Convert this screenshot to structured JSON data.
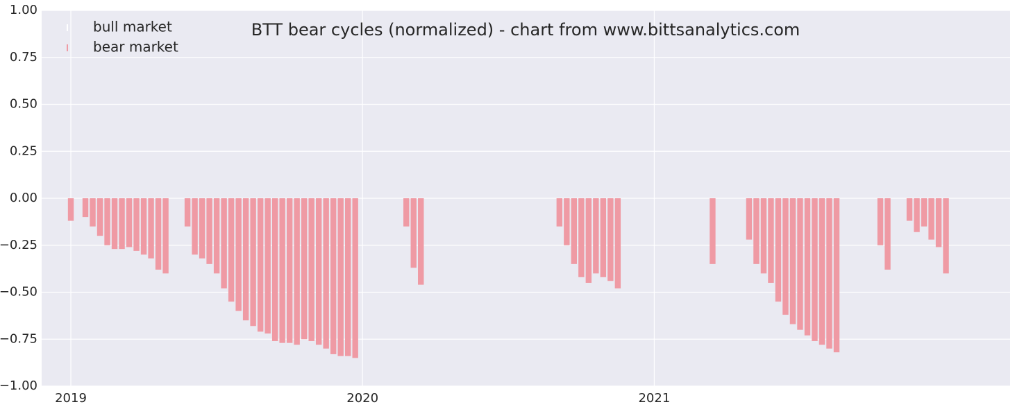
{
  "chart_data": {
    "type": "bar",
    "title": "BTT bear cycles (normalized)  - chart from www.bittsanalytics.com",
    "x": [
      2019,
      2019.025,
      2019.05,
      2019.075,
      2019.1,
      2019.125,
      2019.15,
      2019.175,
      2019.2,
      2019.225,
      2019.25,
      2019.275,
      2019.3,
      2019.325,
      2019.35,
      2019.375,
      2019.4,
      2019.425,
      2019.45,
      2019.475,
      2019.5,
      2019.525,
      2019.55,
      2019.575,
      2019.6,
      2019.625,
      2019.65,
      2019.675,
      2019.7,
      2019.725,
      2019.75,
      2019.775,
      2019.8,
      2019.825,
      2019.85,
      2019.875,
      2019.9,
      2019.925,
      2019.95,
      2019.975,
      2020,
      2020.025,
      2020.05,
      2020.075,
      2020.1,
      2020.125,
      2020.15,
      2020.175,
      2020.2,
      2020.225,
      2020.25,
      2020.275,
      2020.3,
      2020.325,
      2020.35,
      2020.375,
      2020.4,
      2020.425,
      2020.45,
      2020.475,
      2020.5,
      2020.525,
      2020.55,
      2020.575,
      2020.6,
      2020.625,
      2020.65,
      2020.675,
      2020.7,
      2020.725,
      2020.75,
      2020.775,
      2020.8,
      2020.825,
      2020.85,
      2020.875,
      2020.9,
      2020.925,
      2020.95,
      2020.975,
      2021,
      2021.025,
      2021.05,
      2021.075,
      2021.1,
      2021.125,
      2021.15,
      2021.175,
      2021.2,
      2021.225,
      2021.25,
      2021.275,
      2021.3,
      2021.325,
      2021.35,
      2021.375,
      2021.4,
      2021.425,
      2021.45,
      2021.475,
      2021.5,
      2021.525,
      2021.55,
      2021.575,
      2021.6,
      2021.625,
      2021.65,
      2021.675,
      2021.7,
      2021.725,
      2021.75,
      2021.775,
      2021.8,
      2021.825,
      2021.85,
      2021.875,
      2021.9,
      2021.925,
      2021.95,
      2021.975,
      2022
    ],
    "series": [
      {
        "name": "bull market",
        "color": "#ffffff",
        "values": [
          null,
          0,
          null,
          null,
          null,
          null,
          null,
          null,
          null,
          null,
          null,
          null,
          null,
          null,
          0,
          0,
          null,
          null,
          null,
          null,
          null,
          null,
          null,
          null,
          null,
          null,
          null,
          null,
          null,
          null,
          null,
          null,
          null,
          null,
          null,
          null,
          null,
          null,
          null,
          null,
          0,
          0,
          0,
          0,
          0,
          0,
          null,
          null,
          null,
          0,
          0,
          0,
          0,
          0,
          0,
          0,
          0,
          0,
          0,
          0,
          0,
          0,
          0,
          0,
          0,
          0,
          0,
          null,
          null,
          null,
          null,
          null,
          null,
          null,
          null,
          null,
          0,
          0,
          0,
          0,
          0,
          0,
          0,
          0,
          0,
          0,
          0,
          0,
          null,
          0,
          0,
          0,
          0,
          null,
          null,
          null,
          null,
          null,
          null,
          null,
          null,
          null,
          null,
          null,
          null,
          null,
          0,
          0,
          0,
          0,
          0,
          null,
          null,
          0,
          0,
          null,
          null,
          null,
          null,
          null,
          null
        ]
      },
      {
        "name": "bear market",
        "color": "#ef9aa4",
        "values": [
          -0.12,
          null,
          -0.1,
          -0.15,
          -0.2,
          -0.25,
          -0.27,
          -0.27,
          -0.26,
          -0.28,
          -0.3,
          -0.32,
          -0.38,
          -0.4,
          null,
          null,
          -0.15,
          -0.3,
          -0.32,
          -0.35,
          -0.4,
          -0.48,
          -0.55,
          -0.6,
          -0.65,
          -0.68,
          -0.71,
          -0.72,
          -0.76,
          -0.77,
          -0.77,
          -0.78,
          -0.75,
          -0.76,
          -0.78,
          -0.8,
          -0.83,
          -0.84,
          -0.84,
          -0.85,
          null,
          null,
          null,
          null,
          null,
          null,
          -0.15,
          -0.37,
          -0.46,
          null,
          null,
          null,
          null,
          null,
          null,
          null,
          null,
          null,
          null,
          null,
          null,
          null,
          null,
          null,
          null,
          null,
          null,
          -0.15,
          -0.25,
          -0.35,
          -0.42,
          -0.45,
          -0.4,
          -0.42,
          -0.44,
          -0.48,
          null,
          null,
          null,
          null,
          null,
          null,
          null,
          null,
          null,
          null,
          null,
          null,
          -0.35,
          null,
          null,
          null,
          null,
          -0.22,
          -0.35,
          -0.4,
          -0.45,
          -0.55,
          -0.62,
          -0.67,
          -0.7,
          -0.73,
          -0.76,
          -0.78,
          -0.8,
          -0.82,
          null,
          null,
          null,
          null,
          null,
          -0.25,
          -0.38,
          null,
          null,
          -0.12,
          -0.18,
          -0.15,
          -0.22,
          -0.26,
          -0.4
        ]
      }
    ],
    "xlim": [
      2018.9,
      2022.22
    ],
    "xticks": [
      2019,
      2020,
      2021
    ],
    "ylim": [
      -1,
      1
    ],
    "yticks": [
      {
        "value": -1,
        "label": "−1.00"
      },
      {
        "value": -0.75,
        "label": "−0.75"
      },
      {
        "value": -0.5,
        "label": "−0.50"
      },
      {
        "value": -0.25,
        "label": "−0.25"
      },
      {
        "value": 0,
        "label": "0.00"
      },
      {
        "value": 0.25,
        "label": "0.25"
      },
      {
        "value": 0.5,
        "label": "0.50"
      },
      {
        "value": 0.75,
        "label": "0.75"
      },
      {
        "value": 1,
        "label": "1.00"
      }
    ],
    "grid": true,
    "legend": "upper left"
  }
}
